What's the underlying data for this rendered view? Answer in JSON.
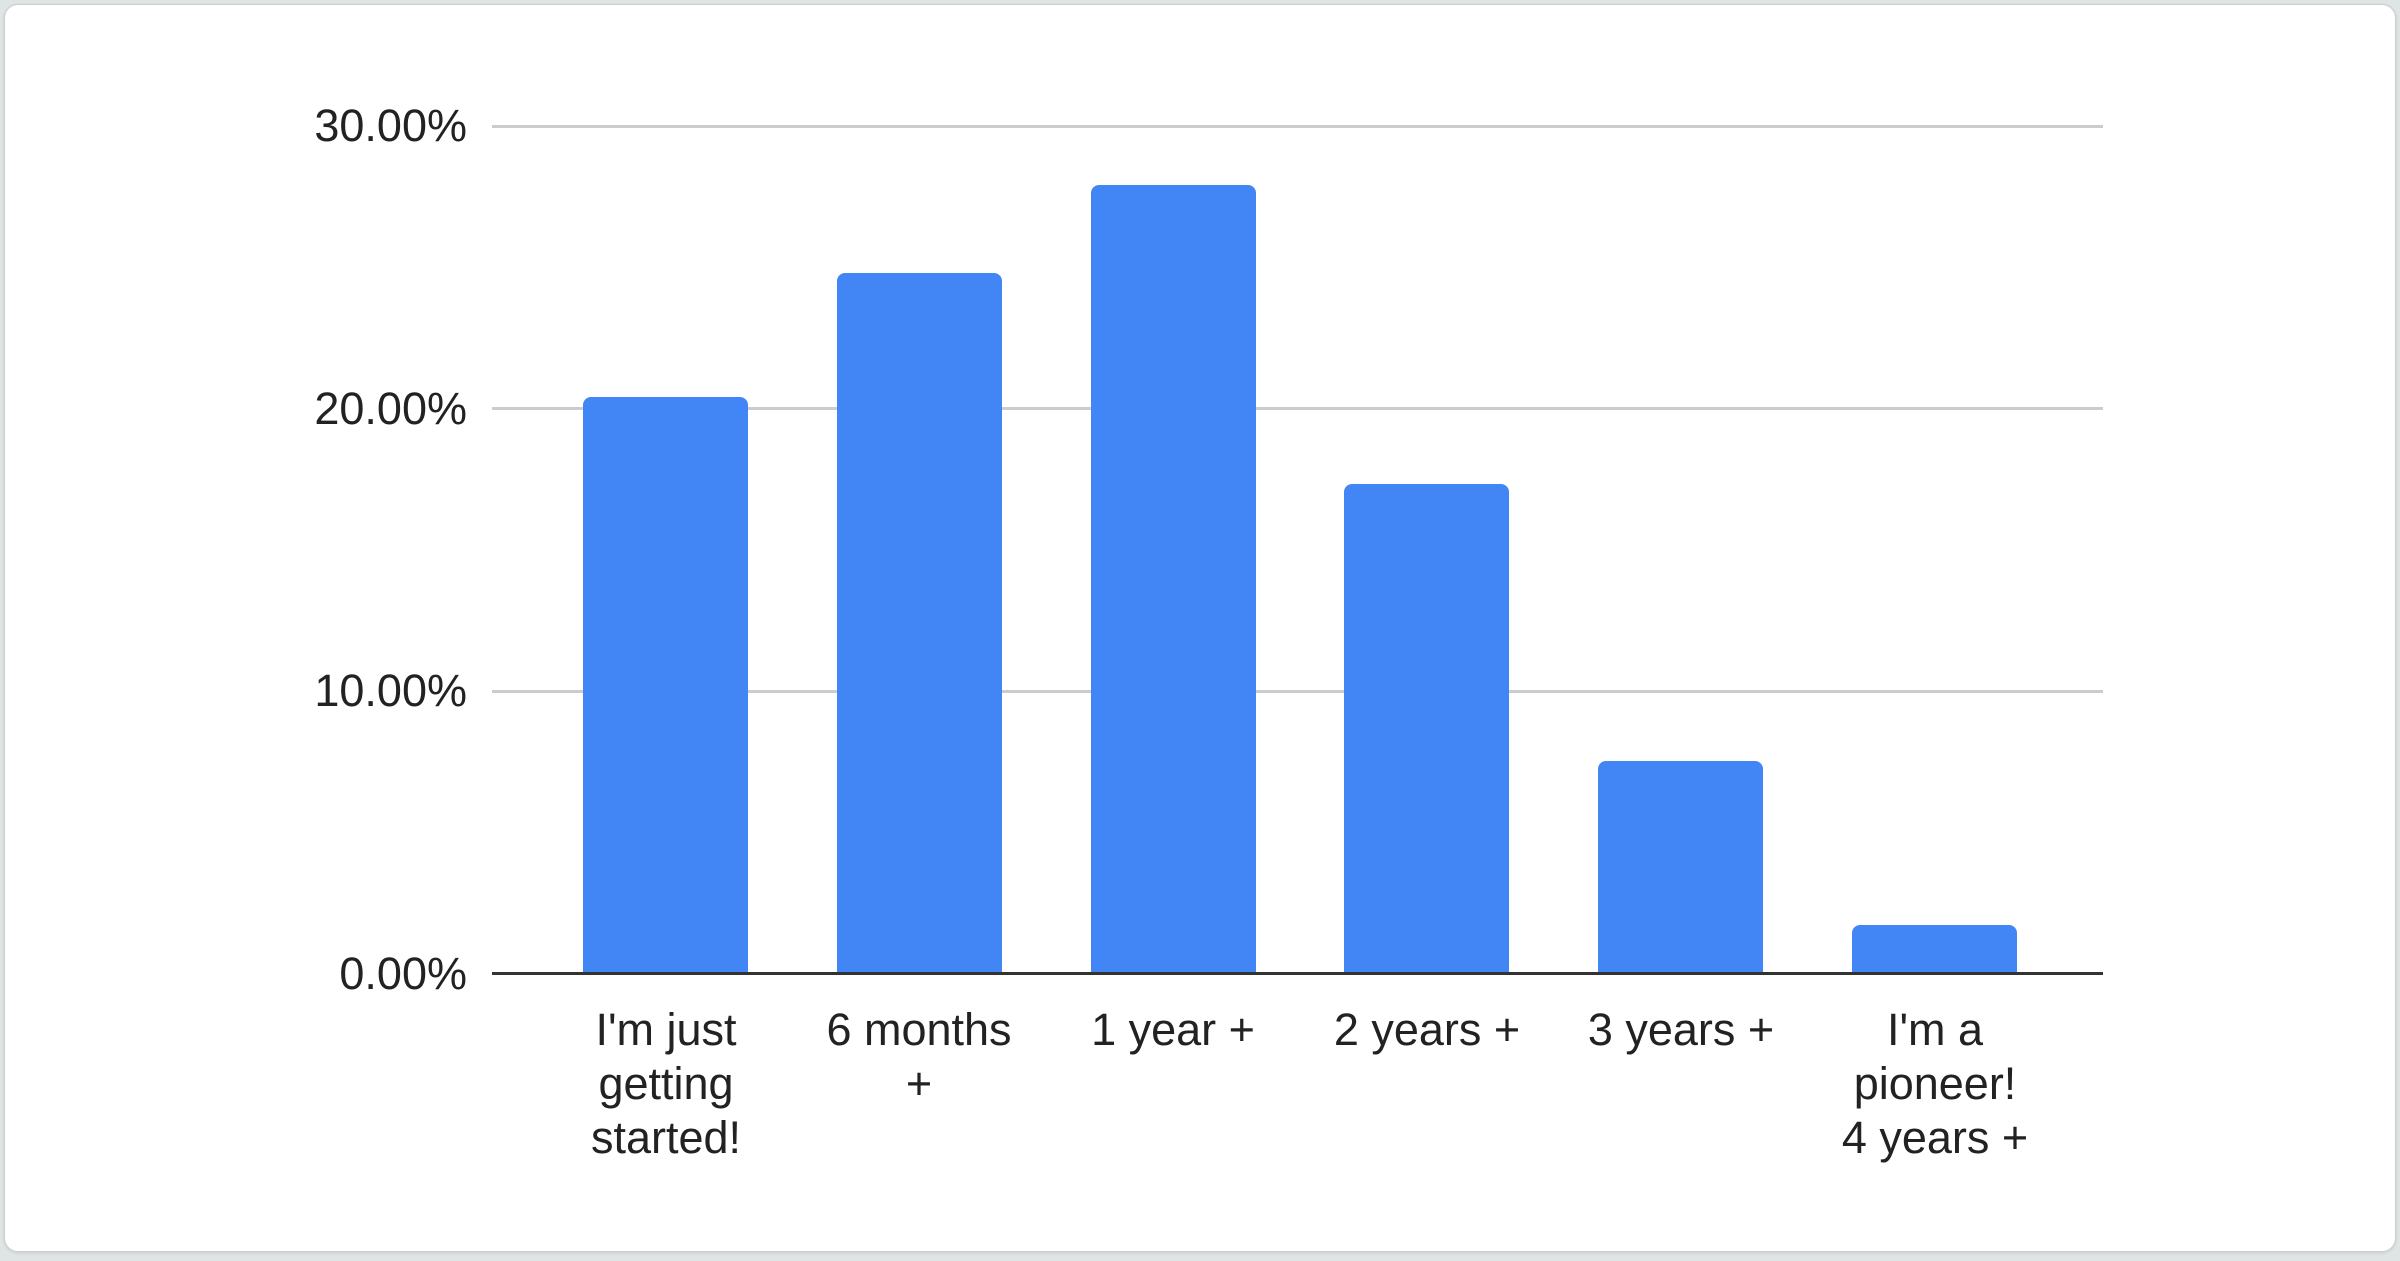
{
  "page": {
    "background_color": "#dfe4e4",
    "card_background_color": "#ffffff"
  },
  "chart_data": {
    "type": "bar",
    "title": "",
    "xlabel": "",
    "ylabel": "",
    "categories": [
      "I'm just getting started!",
      "6 months +",
      "1 year +",
      "2 years +",
      "3 years +",
      "I'm a pioneer! 4 years +"
    ],
    "categories_wrapped": [
      "I'm just\ngetting\nstarted!",
      "6 months\n+",
      "1 year +",
      "2 years +",
      "3 years +",
      "I'm a\npioneer!\n4 years +"
    ],
    "values": [
      20.4,
      24.8,
      27.9,
      17.3,
      7.5,
      1.7
    ],
    "value_unit": "percent",
    "ylim": [
      0,
      30
    ],
    "ytick_labels": [
      "0.00%",
      "10.00%",
      "20.00%",
      "30.00%"
    ],
    "ytick_values": [
      0,
      10,
      20,
      30
    ],
    "grid": true,
    "legend_position": "none",
    "bar_color": "#4285f4",
    "gridline_color": "#cccccc",
    "axis_line_color": "#333333",
    "text_color": "#222222"
  }
}
